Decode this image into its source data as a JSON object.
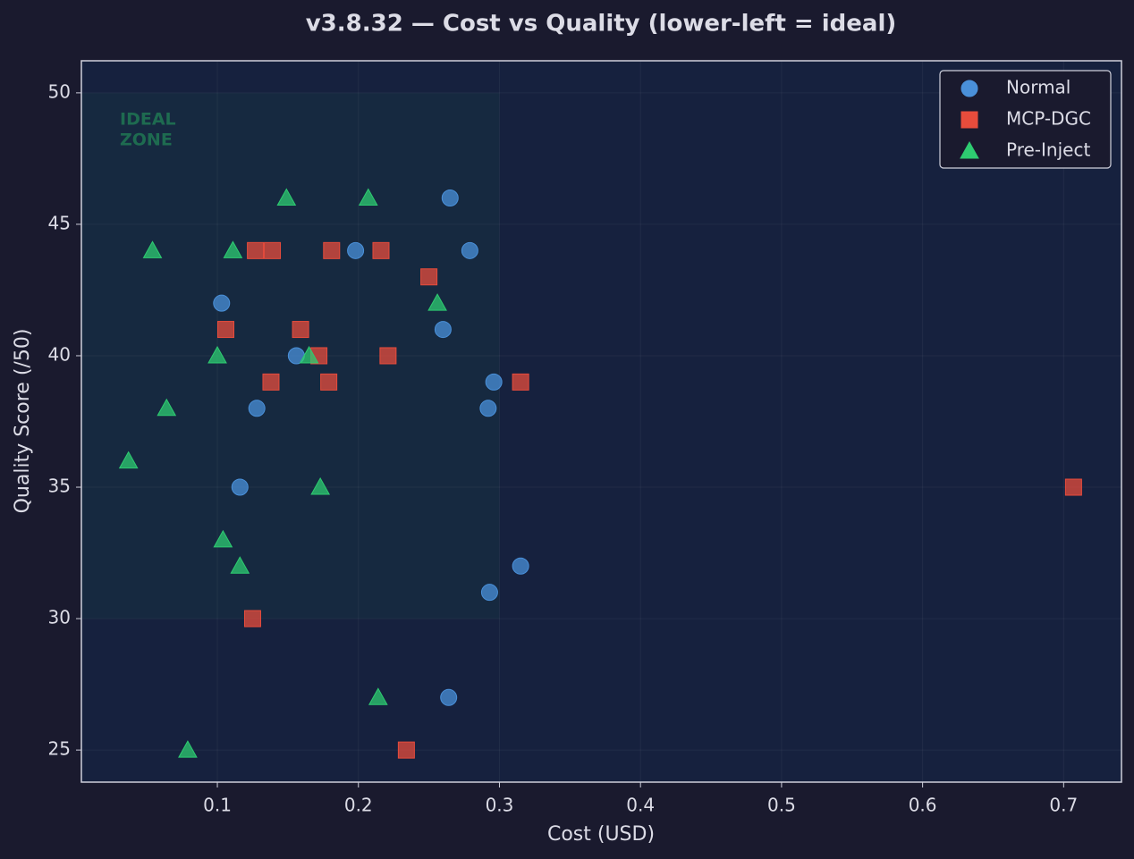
{
  "chart_data": {
    "type": "scatter",
    "title": "v3.8.32 — Cost vs Quality (lower-left = ideal)",
    "x_label": "Cost (USD)",
    "y_label": "Quality Score (/50)",
    "xlim": [
      0.0036,
      0.741
    ],
    "ylim": [
      23.78,
      51.22
    ],
    "xticks": [
      0.1,
      0.2,
      0.3,
      0.4,
      0.5,
      0.6,
      0.7
    ],
    "yticks": [
      25,
      30,
      35,
      40,
      45,
      50
    ],
    "grid": true,
    "legend": "upper right",
    "ideal_zone": {
      "text": [
        "IDEAL",
        "ZONE"
      ],
      "xlim": [
        0,
        0.3
      ],
      "ylim": [
        30,
        50
      ]
    },
    "series": [
      {
        "name": "Normal",
        "color": "#4a90d9",
        "marker": "circle",
        "x": [
          0.265,
          0.198,
          0.279,
          0.103,
          0.26,
          0.156,
          0.296,
          0.292,
          0.128,
          0.116,
          0.315,
          0.293,
          0.264
        ],
        "values": [
          46,
          44,
          44,
          42,
          41,
          40,
          39,
          38,
          38,
          35,
          32,
          31,
          27
        ]
      },
      {
        "name": "MCP-DGC",
        "color": "#e74c3c",
        "marker": "square",
        "x": [
          0.127,
          0.139,
          0.181,
          0.216,
          0.25,
          0.106,
          0.159,
          0.172,
          0.221,
          0.138,
          0.179,
          0.315,
          0.707,
          0.125,
          0.234
        ],
        "values": [
          44,
          44,
          44,
          44,
          43,
          41,
          41,
          40,
          40,
          39,
          39,
          39,
          35,
          30,
          25
        ]
      },
      {
        "name": "Pre-Inject",
        "color": "#2ecc71",
        "marker": "triangle",
        "x": [
          0.149,
          0.207,
          0.054,
          0.111,
          0.256,
          0.1,
          0.165,
          0.064,
          0.037,
          0.173,
          0.104,
          0.116,
          0.214,
          0.079
        ],
        "values": [
          46,
          46,
          44,
          44,
          42,
          40,
          40,
          38,
          36,
          35,
          33,
          32,
          27,
          25
        ]
      }
    ]
  }
}
